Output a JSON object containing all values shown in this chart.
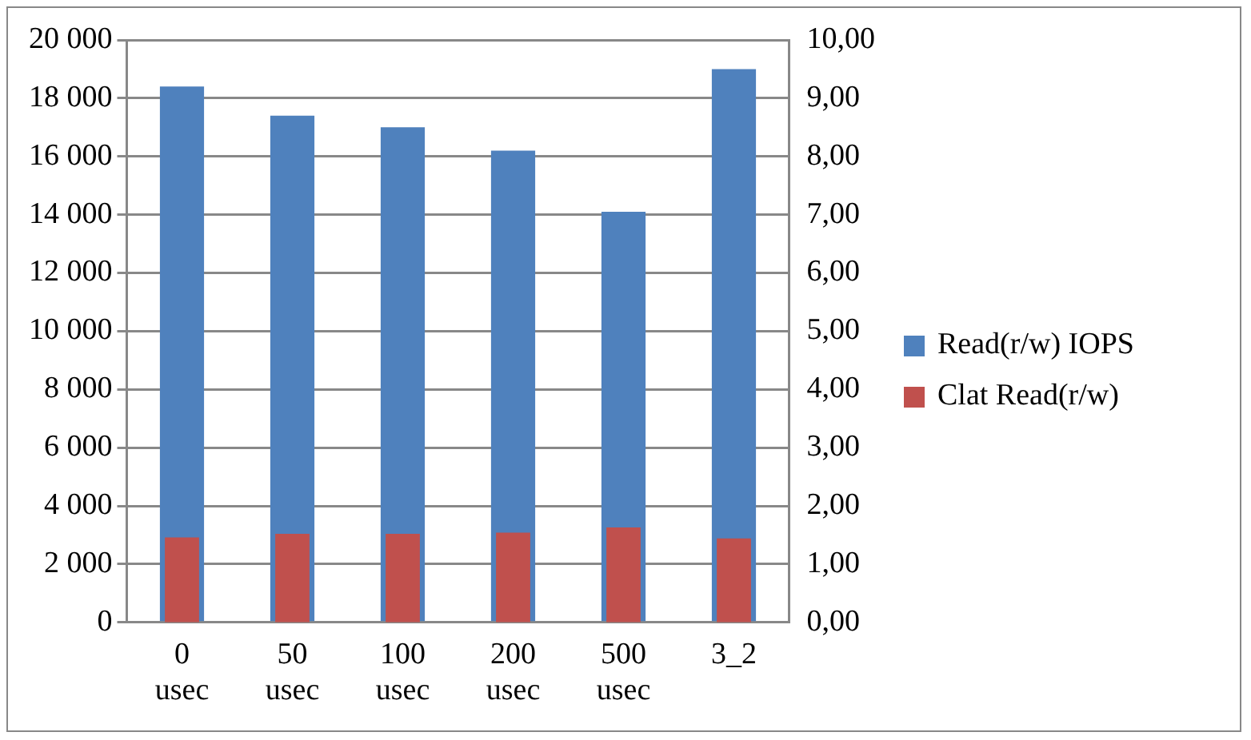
{
  "chart_data": {
    "type": "bar",
    "categories": [
      "0 usec",
      "50 usec",
      "100 usec",
      "200 usec",
      "500 usec",
      "3_2"
    ],
    "series": [
      {
        "name": "Read(r/w) IOPS",
        "color": "#4f81bd",
        "values": [
          18400,
          17400,
          17000,
          16200,
          14100,
          19000
        ]
      },
      {
        "name": "Clat Read(r/w)",
        "color": "#c0504d",
        "axis": "y2",
        "values": [
          1.46,
          1.52,
          1.52,
          1.54,
          1.63,
          1.44
        ]
      }
    ],
    "ylim": [
      0,
      20000
    ],
    "yticks": [
      {
        "value": 0,
        "label": "0"
      },
      {
        "value": 2000,
        "label": "2 000"
      },
      {
        "value": 4000,
        "label": "4 000"
      },
      {
        "value": 6000,
        "label": "6 000"
      },
      {
        "value": 8000,
        "label": "8 000"
      },
      {
        "value": 10000,
        "label": "10 000"
      },
      {
        "value": 12000,
        "label": "12 000"
      },
      {
        "value": 14000,
        "label": "14 000"
      },
      {
        "value": 16000,
        "label": "16 000"
      },
      {
        "value": 18000,
        "label": "18 000"
      },
      {
        "value": 20000,
        "label": "20 000"
      }
    ],
    "y2lim": [
      0,
      10
    ],
    "y2ticks": [
      {
        "value": 0,
        "label": "0,00"
      },
      {
        "value": 1,
        "label": "1,00"
      },
      {
        "value": 2,
        "label": "2,00"
      },
      {
        "value": 3,
        "label": "3,00"
      },
      {
        "value": 4,
        "label": "4,00"
      },
      {
        "value": 5,
        "label": "5,00"
      },
      {
        "value": 6,
        "label": "6,00"
      },
      {
        "value": 7,
        "label": "7,00"
      },
      {
        "value": 8,
        "label": "8,00"
      },
      {
        "value": 9,
        "label": "9,00"
      },
      {
        "value": 10,
        "label": "10,00"
      }
    ],
    "grid": "y",
    "legend": "right"
  }
}
